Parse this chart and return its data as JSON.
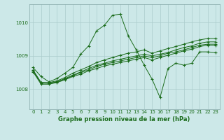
{
  "title": "Graphe pression niveau de la mer (hPa)",
  "background_color": "#cce8e8",
  "grid_color": "#aacccc",
  "line_color": "#1a6b1a",
  "ylabel_ticks": [
    1008,
    1009,
    1010
  ],
  "ylim": [
    1007.4,
    1010.55
  ],
  "xlim": [
    -0.5,
    23.5
  ],
  "x_labels": [
    "0",
    "1",
    "2",
    "3",
    "4",
    "5",
    "6",
    "7",
    "8",
    "9",
    "10",
    "11",
    "12",
    "13",
    "14",
    "15",
    "16",
    "17",
    "18",
    "19",
    "20",
    "21",
    "22",
    "23"
  ],
  "series": [
    [
      1008.65,
      1008.38,
      1008.22,
      1008.32,
      1008.48,
      1008.65,
      1009.05,
      1009.3,
      1009.75,
      1009.92,
      1010.22,
      1010.25,
      1009.6,
      1009.18,
      1008.72,
      1008.3,
      1007.75,
      1008.62,
      1008.78,
      1008.72,
      1008.78,
      1009.12,
      1009.12,
      1009.1
    ],
    [
      1008.58,
      1008.2,
      1008.2,
      1008.25,
      1008.35,
      1008.48,
      1008.58,
      1008.68,
      1008.8,
      1008.88,
      1008.95,
      1009.02,
      1009.08,
      1009.12,
      1009.18,
      1009.08,
      1009.15,
      1009.22,
      1009.28,
      1009.35,
      1009.42,
      1009.48,
      1009.52,
      1009.52
    ],
    [
      1008.55,
      1008.2,
      1008.18,
      1008.22,
      1008.32,
      1008.42,
      1008.52,
      1008.62,
      1008.72,
      1008.78,
      1008.85,
      1008.9,
      1008.95,
      1009.0,
      1009.05,
      1009.0,
      1009.05,
      1009.1,
      1009.18,
      1009.25,
      1009.3,
      1009.38,
      1009.42,
      1009.42
    ],
    [
      1008.55,
      1008.18,
      1008.18,
      1008.22,
      1008.3,
      1008.4,
      1008.5,
      1008.58,
      1008.68,
      1008.75,
      1008.8,
      1008.85,
      1008.9,
      1008.95,
      1009.0,
      1008.95,
      1009.0,
      1009.08,
      1009.12,
      1009.18,
      1009.25,
      1009.32,
      1009.35,
      1009.35
    ],
    [
      1008.52,
      1008.15,
      1008.15,
      1008.2,
      1008.28,
      1008.38,
      1008.45,
      1008.55,
      1008.62,
      1008.7,
      1008.75,
      1008.8,
      1008.85,
      1008.9,
      1008.95,
      1008.88,
      1008.95,
      1009.02,
      1009.08,
      1009.15,
      1009.2,
      1009.28,
      1009.32,
      1009.32
    ]
  ]
}
